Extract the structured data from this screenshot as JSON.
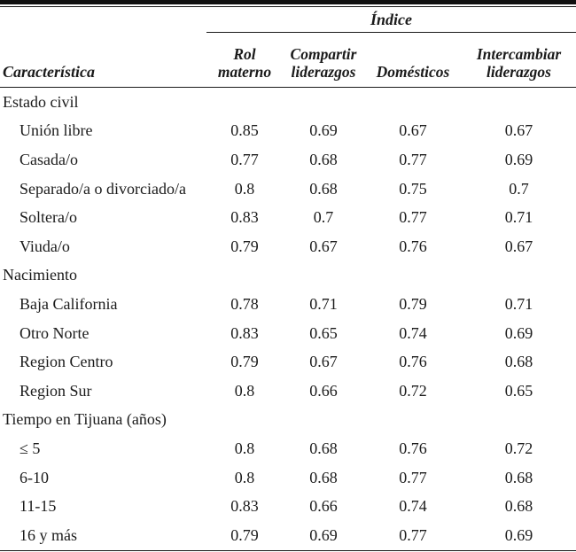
{
  "colors": {
    "background": "#ffffff",
    "text": "#1b1b1b",
    "rule": "#101010"
  },
  "table": {
    "index_header": "Índice",
    "characteristic_header": "Característica",
    "columns": [
      "Rol materno",
      "Compartir liderazgos",
      "Domésticos",
      "Intercambiar liderazgos"
    ],
    "sections": [
      {
        "label": "Estado civil",
        "rows": [
          {
            "label": "Unión libre",
            "values": [
              "0.85",
              "0.69",
              "0.67",
              "0.67"
            ]
          },
          {
            "label": "Casada/o",
            "values": [
              "0.77",
              "0.68",
              "0.77",
              "0.69"
            ]
          },
          {
            "label": "Separado/a o divorciado/a",
            "values": [
              "0.8",
              "0.68",
              "0.75",
              "0.7"
            ]
          },
          {
            "label": "Soltera/o",
            "values": [
              "0.83",
              "0.7",
              "0.77",
              "0.71"
            ]
          },
          {
            "label": "Viuda/o",
            "values": [
              "0.79",
              "0.67",
              "0.76",
              "0.67"
            ]
          }
        ]
      },
      {
        "label": "Nacimiento",
        "rows": [
          {
            "label": "Baja California",
            "values": [
              "0.78",
              "0.71",
              "0.79",
              "0.71"
            ]
          },
          {
            "label": "Otro Norte",
            "values": [
              "0.83",
              "0.65",
              "0.74",
              "0.69"
            ]
          },
          {
            "label": "Region Centro",
            "values": [
              "0.79",
              "0.67",
              "0.76",
              "0.68"
            ]
          },
          {
            "label": "Region Sur",
            "values": [
              "0.8",
              "0.66",
              "0.72",
              "0.65"
            ]
          }
        ]
      },
      {
        "label": "Tiempo en Tijuana (años)",
        "rows": [
          {
            "label": "≤ 5",
            "values": [
              "0.8",
              "0.68",
              "0.76",
              "0.72"
            ]
          },
          {
            "label": "6-10",
            "values": [
              "0.8",
              "0.68",
              "0.77",
              "0.68"
            ]
          },
          {
            "label": "11-15",
            "values": [
              "0.83",
              "0.66",
              "0.74",
              "0.68"
            ]
          },
          {
            "label": "16 y más",
            "values": [
              "0.79",
              "0.69",
              "0.77",
              "0.69"
            ]
          }
        ]
      }
    ]
  }
}
